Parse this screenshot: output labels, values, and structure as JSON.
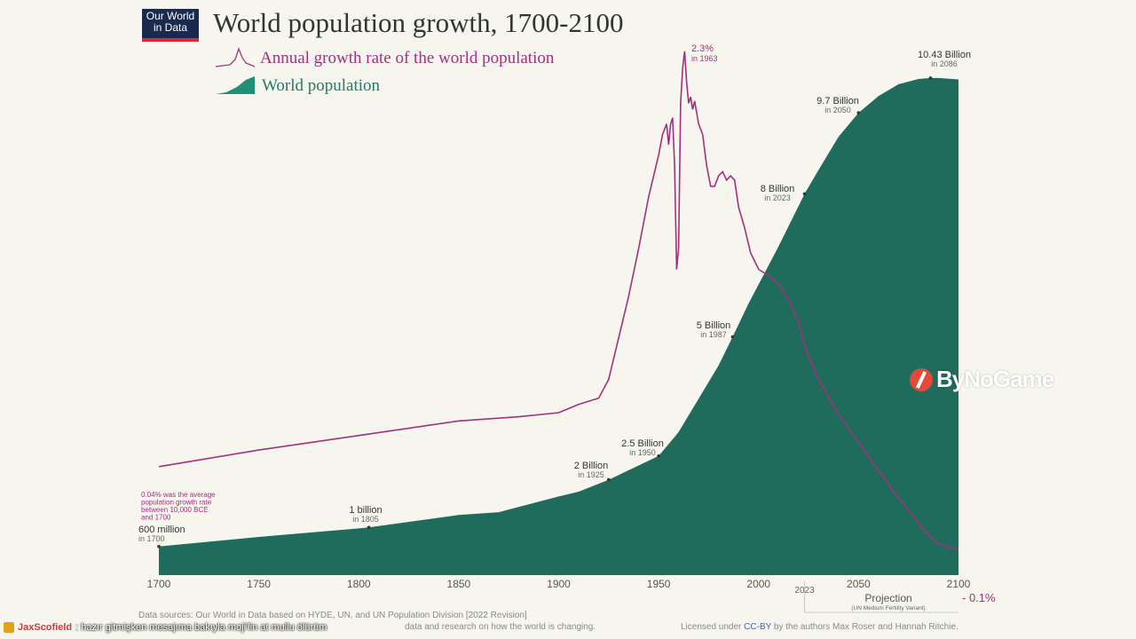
{
  "logo": {
    "line1": "Our World",
    "line2": "in Data"
  },
  "chart_data": {
    "type": "area",
    "title": "World population growth, 1700-2100",
    "legend": [
      {
        "name": "Annual growth rate of the world population",
        "color": "#a2307f",
        "type": "line"
      },
      {
        "name": "World population",
        "color": "#1f6b5c",
        "type": "area"
      }
    ],
    "xlim": [
      1700,
      2100
    ],
    "x_ticks": [
      "1700",
      "1750",
      "1800",
      "1850",
      "1900",
      "1950",
      "2000",
      "2050",
      "2100"
    ],
    "projection_tick": "2023",
    "population_billion": {
      "x": [
        1700,
        1750,
        1800,
        1805,
        1850,
        1870,
        1900,
        1910,
        1925,
        1950,
        1960,
        1970,
        1980,
        1987,
        1995,
        2000,
        2010,
        2023,
        2030,
        2040,
        2050,
        2060,
        2070,
        2080,
        2086,
        2090,
        2100
      ],
      "y": [
        0.6,
        0.8,
        0.98,
        1.0,
        1.26,
        1.32,
        1.65,
        1.75,
        2.0,
        2.5,
        3.0,
        3.7,
        4.4,
        5.0,
        5.7,
        6.1,
        6.9,
        8.0,
        8.5,
        9.2,
        9.7,
        10.05,
        10.3,
        10.41,
        10.43,
        10.43,
        10.4
      ]
    },
    "growth_rate_percent": {
      "x": [
        1700,
        1750,
        1800,
        1850,
        1880,
        1900,
        1910,
        1920,
        1925,
        1930,
        1935,
        1940,
        1945,
        1950,
        1952,
        1954,
        1955,
        1956,
        1957,
        1958,
        1959,
        1960,
        1961,
        1962,
        1963,
        1964,
        1965,
        1966,
        1967,
        1968,
        1970,
        1972,
        1974,
        1976,
        1978,
        1980,
        1982,
        1984,
        1986,
        1988,
        1990,
        1993,
        1996,
        2000,
        2005,
        2010,
        2015,
        2020,
        2023,
        2030,
        2040,
        2050,
        2060,
        2070,
        2080,
        2086,
        2090,
        2100
      ],
      "y": [
        0.3,
        0.38,
        0.45,
        0.52,
        0.54,
        0.56,
        0.6,
        0.63,
        0.72,
        0.92,
        1.12,
        1.35,
        1.6,
        1.8,
        1.9,
        1.95,
        1.85,
        1.95,
        1.98,
        1.75,
        1.25,
        1.35,
        2.05,
        2.22,
        2.3,
        2.15,
        2.05,
        2.08,
        2.02,
        2.06,
        1.95,
        1.9,
        1.75,
        1.65,
        1.65,
        1.7,
        1.72,
        1.68,
        1.7,
        1.68,
        1.55,
        1.45,
        1.33,
        1.25,
        1.22,
        1.18,
        1.1,
        1.0,
        0.88,
        0.72,
        0.55,
        0.42,
        0.28,
        0.15,
        0.03,
        -0.04,
        -0.07,
        -0.1
      ]
    },
    "annotations": {
      "p1700": {
        "value": "600 million",
        "year": "in 1700"
      },
      "p1805": {
        "value": "1 billion",
        "year": "in 1805"
      },
      "p1925": {
        "value": "2 Billion",
        "year": "in 1925"
      },
      "p1950": {
        "value": "2.5 Billion",
        "year": "in 1950"
      },
      "p1987": {
        "value": "5 Billion",
        "year": "in 1987"
      },
      "p2023": {
        "value": "8 Billion",
        "year": "in 2023"
      },
      "p2050": {
        "value": "9.7 Billion",
        "year": "in 2050"
      },
      "p2086": {
        "value": "10.43 Billion",
        "year": "in 2086"
      },
      "peak": {
        "value": "2.3%",
        "year": "in 1963"
      },
      "end": {
        "value": "- 0.1%"
      },
      "early_rate": [
        "0.04% was the average",
        "population growth rate",
        "between 10,000 BCE",
        "and 1700"
      ]
    },
    "projection": {
      "label": "Projection",
      "sub": "(UN Medium Fertility Variant)"
    }
  },
  "footer": {
    "sources": "Data sources: Our World in Data based on HYDE, UN, and UN Population Division [2022 Revision]",
    "mission": "data and research on how the world is changing.",
    "license_pre": "Licensed under",
    "license_link": "CC-BY",
    "license_post": "by the authors Max Roser and Hannah Ritchie."
  },
  "chat": {
    "user": "JaxScofield",
    "message": ": hazır gitmişken mesajıma bakıyla moji'lin at mullu ölürüm"
  },
  "watermark": {
    "text": "ByNoGame"
  }
}
